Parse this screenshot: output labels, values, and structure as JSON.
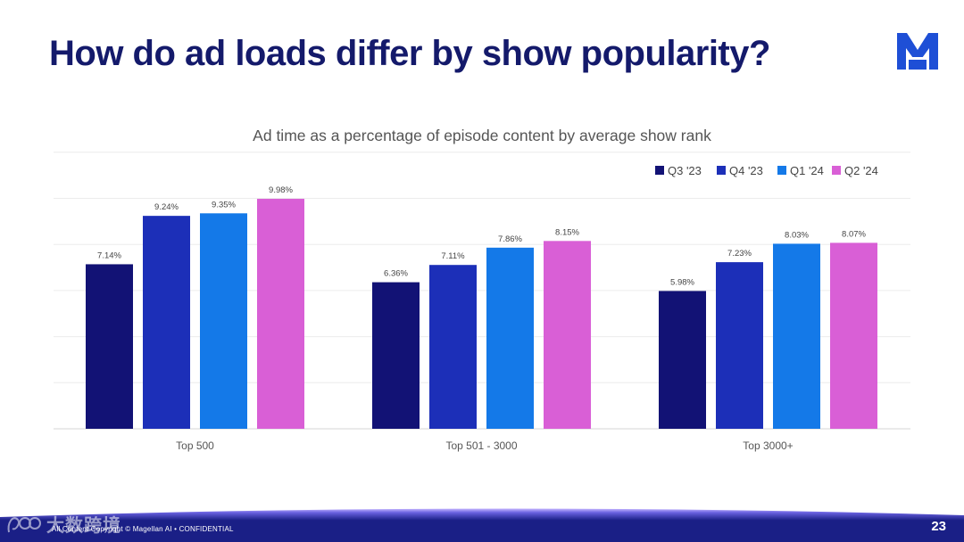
{
  "slide": {
    "title": "How do ad loads differ by show popularity?",
    "logo_letter": "M",
    "footer": "All Content Copyright © Magellan AI • CONFIDENTIAL",
    "page_number": "23",
    "watermark_text": "大数跨境"
  },
  "colors": {
    "title": "#141a6b",
    "brand": "#1e4fd6",
    "footer_dark": "#1a1f86",
    "footer_light": "#c7b8ff"
  },
  "chart_data": {
    "type": "bar",
    "title": "Ad time as a percentage of episode content by average show rank",
    "categories": [
      "Top 500",
      "Top 501 - 3000",
      "Top 3000+"
    ],
    "series": [
      {
        "name": "Q3 '23",
        "color": "#121275",
        "values": [
          7.14,
          6.36,
          5.98
        ],
        "labels": [
          "7.14%",
          "6.36%",
          "5.98%"
        ]
      },
      {
        "name": "Q4 '23",
        "color": "#1c2fb8",
        "values": [
          9.24,
          7.11,
          7.23
        ],
        "labels": [
          "9.24%",
          "7.11%",
          "7.23%"
        ]
      },
      {
        "name": "Q1 '24",
        "color": "#1479e8",
        "values": [
          9.35,
          7.86,
          8.03
        ],
        "labels": [
          "9.35%",
          "7.86%",
          "8.03%"
        ]
      },
      {
        "name": "Q2 '24",
        "color": "#d95fd6",
        "values": [
          9.98,
          8.15,
          8.07
        ],
        "labels": [
          "9.98%",
          "8.15%",
          "8.07%"
        ]
      }
    ],
    "ylim": [
      0,
      12
    ],
    "grid": true,
    "legend": "top-right",
    "xlabel": "",
    "ylabel": ""
  }
}
